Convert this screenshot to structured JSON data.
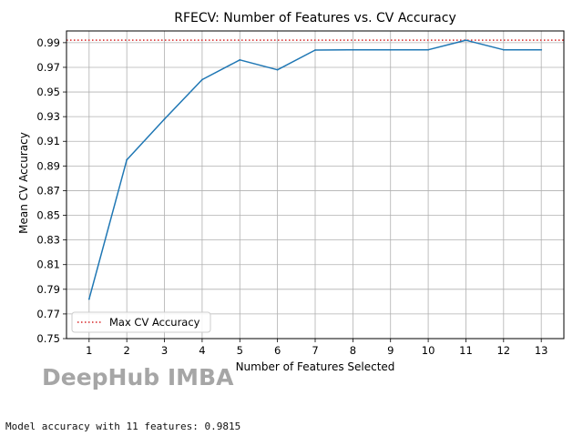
{
  "chart_data": {
    "type": "line",
    "title": "RFECV: Number of Features vs. CV Accuracy",
    "xlabel": "Number of Features Selected",
    "ylabel": "Mean CV Accuracy",
    "x": [
      1,
      2,
      3,
      4,
      5,
      6,
      7,
      8,
      9,
      10,
      11,
      12,
      13
    ],
    "xticks": [
      "1",
      "2",
      "3",
      "4",
      "5",
      "6",
      "7",
      "8",
      "9",
      "10",
      "11",
      "12",
      "13"
    ],
    "yticks": [
      "0.75",
      "0.77",
      "0.79",
      "0.81",
      "0.83",
      "0.85",
      "0.87",
      "0.89",
      "0.91",
      "0.93",
      "0.95",
      "0.97",
      "0.99"
    ],
    "xlim": [
      0.4,
      13.6
    ],
    "ylim": [
      0.75,
      0.9995
    ],
    "grid": true,
    "series": [
      {
        "values": [
          0.782,
          0.895,
          0.928,
          0.96,
          0.976,
          0.968,
          0.984,
          0.9842,
          0.9842,
          0.9842,
          0.992,
          0.9842,
          0.9842
        ],
        "color": "#1f77b4"
      }
    ],
    "reference_line": {
      "name": "Max CV Accuracy",
      "value": 0.992,
      "color": "#d62728",
      "style": "dotted"
    },
    "legend_position": "lower-left"
  },
  "watermark": "DeepHub IMBA",
  "console_output": "Model accuracy with 11 features: 0.9815"
}
